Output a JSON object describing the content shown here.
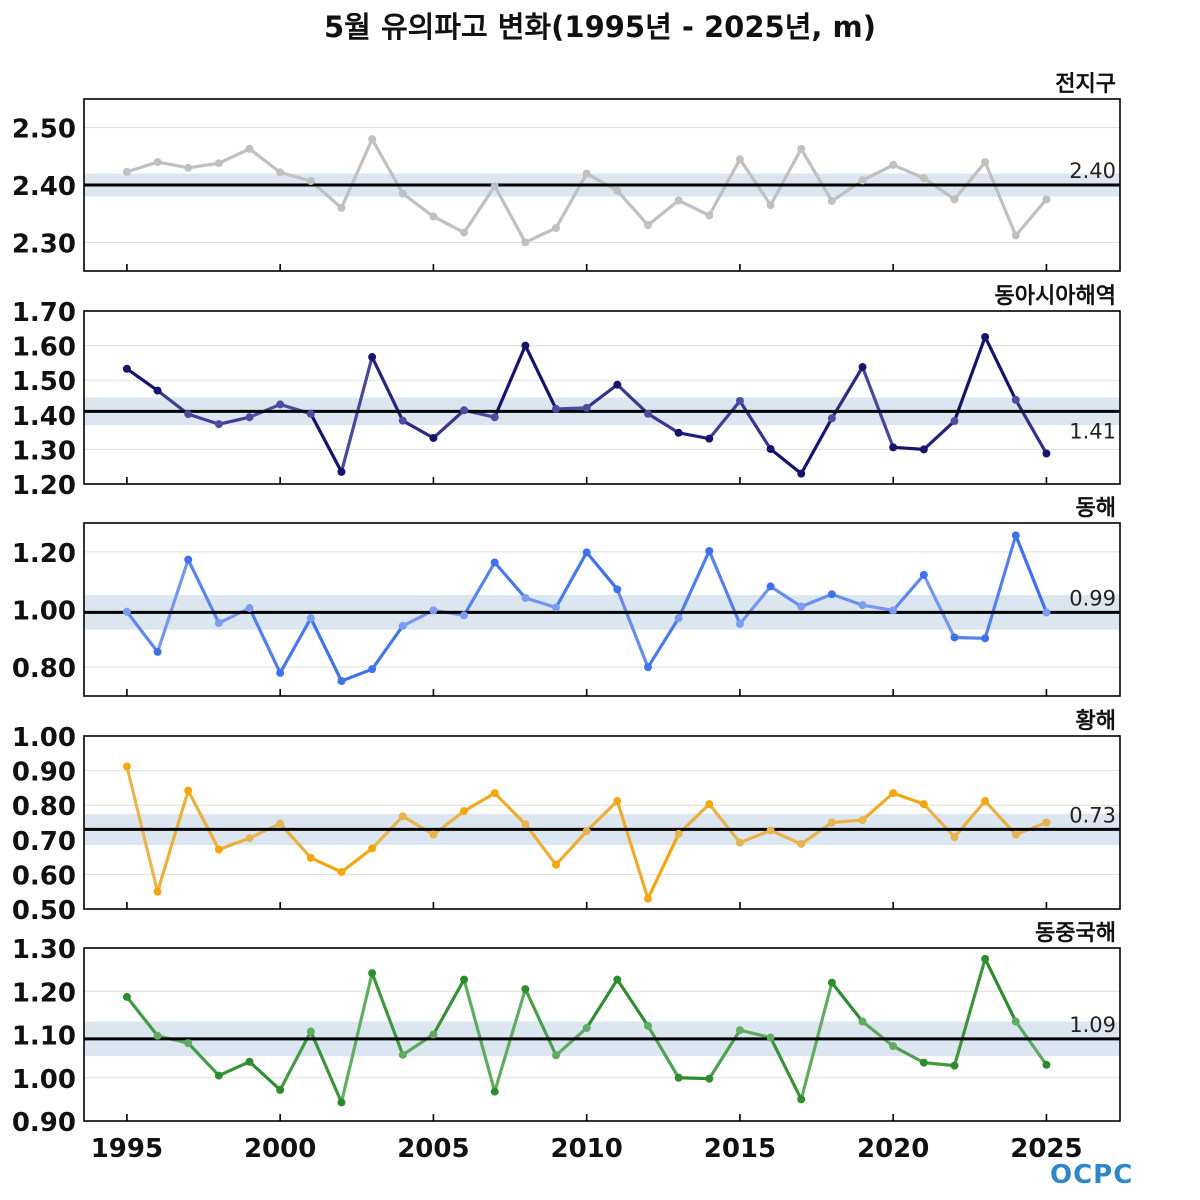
{
  "title": "5월 유의파고 변화(1995년 - 2025년, m)",
  "logo_text": "OCPC",
  "x_ticks": [
    1995,
    2000,
    2005,
    2010,
    2015,
    2020,
    2025
  ],
  "chart_data": [
    {
      "type": "line",
      "title": "전지구",
      "x": [
        1995,
        1996,
        1997,
        1998,
        1999,
        2000,
        2001,
        2002,
        2003,
        2004,
        2005,
        2006,
        2007,
        2008,
        2009,
        2010,
        2011,
        2012,
        2013,
        2014,
        2015,
        2016,
        2017,
        2018,
        2019,
        2020,
        2021,
        2022,
        2023,
        2024,
        2025
      ],
      "values": [
        2.423,
        2.44,
        2.43,
        2.438,
        2.463,
        2.422,
        2.407,
        2.36,
        2.48,
        2.385,
        2.345,
        2.317,
        2.398,
        2.3,
        2.325,
        2.42,
        2.39,
        2.33,
        2.373,
        2.347,
        2.445,
        2.365,
        2.463,
        2.372,
        2.408,
        2.435,
        2.412,
        2.375,
        2.44,
        2.312,
        2.375
      ],
      "mean": 2.4,
      "mean_label": "2.40",
      "band": [
        2.38,
        2.42
      ],
      "ylim": [
        2.25,
        2.55
      ],
      "yticks": [
        2.3,
        2.4,
        2.5
      ],
      "ytick_labels": [
        "2.30",
        "2.40",
        "2.50"
      ],
      "line_color": "#c0c0c0",
      "highlight_color": "#c0c0c0"
    },
    {
      "type": "line",
      "title": "동아시아해역",
      "x": [
        1995,
        1996,
        1997,
        1998,
        1999,
        2000,
        2001,
        2002,
        2003,
        2004,
        2005,
        2006,
        2007,
        2008,
        2009,
        2010,
        2011,
        2012,
        2013,
        2014,
        2015,
        2016,
        2017,
        2018,
        2019,
        2020,
        2021,
        2022,
        2023,
        2024,
        2025
      ],
      "values": [
        1.533,
        1.47,
        1.402,
        1.373,
        1.393,
        1.43,
        1.403,
        1.235,
        1.567,
        1.383,
        1.333,
        1.413,
        1.393,
        1.6,
        1.417,
        1.42,
        1.487,
        1.403,
        1.348,
        1.331,
        1.44,
        1.301,
        1.23,
        1.39,
        1.538,
        1.306,
        1.3,
        1.382,
        1.625,
        1.443,
        1.288
      ],
      "mean": 1.41,
      "mean_label": "1.41",
      "band": [
        1.37,
        1.45
      ],
      "ylim": [
        1.2,
        1.7
      ],
      "yticks": [
        1.2,
        1.3,
        1.4,
        1.5,
        1.6,
        1.7
      ],
      "ytick_labels": [
        "1.20",
        "1.30",
        "1.40",
        "1.50",
        "1.60",
        "1.70"
      ],
      "line_color": "#14146e",
      "highlight_color": "#5a5ab0"
    },
    {
      "type": "line",
      "title": "동해",
      "x": [
        1995,
        1996,
        1997,
        1998,
        1999,
        2000,
        2001,
        2002,
        2003,
        2004,
        2005,
        2006,
        2007,
        2008,
        2009,
        2010,
        2011,
        2012,
        2013,
        2014,
        2015,
        2016,
        2017,
        2018,
        2019,
        2020,
        2021,
        2022,
        2023,
        2024,
        2025
      ],
      "values": [
        0.992,
        0.853,
        1.173,
        0.953,
        1.005,
        0.78,
        0.97,
        0.752,
        0.793,
        0.943,
        0.997,
        0.98,
        1.163,
        1.04,
        1.007,
        1.198,
        1.07,
        0.8,
        0.97,
        1.203,
        0.95,
        1.08,
        1.01,
        1.053,
        1.015,
        0.997,
        1.12,
        0.903,
        0.9,
        1.257,
        0.99
      ],
      "mean": 0.99,
      "mean_label": "0.99",
      "band": [
        0.93,
        1.05
      ],
      "ylim": [
        0.7,
        1.3
      ],
      "yticks": [
        0.8,
        1.0,
        1.2
      ],
      "ytick_labels": [
        "0.80",
        "1.00",
        "1.20"
      ],
      "line_color": "#3f72ea",
      "highlight_color": "#8aa6f0"
    },
    {
      "type": "line",
      "title": "황해",
      "x": [
        1995,
        1996,
        1997,
        1998,
        1999,
        2000,
        2001,
        2002,
        2003,
        2004,
        2005,
        2006,
        2007,
        2008,
        2009,
        2010,
        2011,
        2012,
        2013,
        2014,
        2015,
        2016,
        2017,
        2018,
        2019,
        2020,
        2021,
        2022,
        2023,
        2024,
        2025
      ],
      "values": [
        0.912,
        0.55,
        0.842,
        0.672,
        0.705,
        0.747,
        0.648,
        0.607,
        0.675,
        0.768,
        0.715,
        0.783,
        0.835,
        0.745,
        0.628,
        0.725,
        0.812,
        0.53,
        0.717,
        0.803,
        0.692,
        0.727,
        0.688,
        0.75,
        0.757,
        0.835,
        0.803,
        0.708,
        0.812,
        0.715,
        0.75
      ],
      "mean": 0.73,
      "mean_label": "0.73",
      "band": [
        0.685,
        0.775
      ],
      "ylim": [
        0.5,
        1.0
      ],
      "yticks": [
        0.5,
        0.6,
        0.7,
        0.8,
        0.9,
        1.0
      ],
      "ytick_labels": [
        "0.50",
        "0.60",
        "0.70",
        "0.80",
        "0.90",
        "1.00"
      ],
      "line_color": "#f5a50e",
      "highlight_color": "#e4b95f"
    },
    {
      "type": "line",
      "title": "동중국해",
      "x": [
        1995,
        1996,
        1997,
        1998,
        1999,
        2000,
        2001,
        2002,
        2003,
        2004,
        2005,
        2006,
        2007,
        2008,
        2009,
        2010,
        2011,
        2012,
        2013,
        2014,
        2015,
        2016,
        2017,
        2018,
        2019,
        2020,
        2021,
        2022,
        2023,
        2024,
        2025
      ],
      "values": [
        1.187,
        1.097,
        1.08,
        1.005,
        1.037,
        0.972,
        1.107,
        0.943,
        1.242,
        1.053,
        1.1,
        1.227,
        0.968,
        1.205,
        1.052,
        1.115,
        1.227,
        1.12,
        1.0,
        0.998,
        1.11,
        1.093,
        0.95,
        1.22,
        1.13,
        1.073,
        1.035,
        1.028,
        1.275,
        1.13,
        1.03
      ],
      "mean": 1.09,
      "mean_label": "1.09",
      "band": [
        1.05,
        1.13
      ],
      "ylim": [
        0.9,
        1.3
      ],
      "yticks": [
        0.9,
        1.0,
        1.1,
        1.2,
        1.3
      ],
      "ytick_labels": [
        "0.90",
        "1.00",
        "1.10",
        "1.20",
        "1.30"
      ],
      "line_color": "#2e8b2e",
      "highlight_color": "#6db46d"
    }
  ]
}
